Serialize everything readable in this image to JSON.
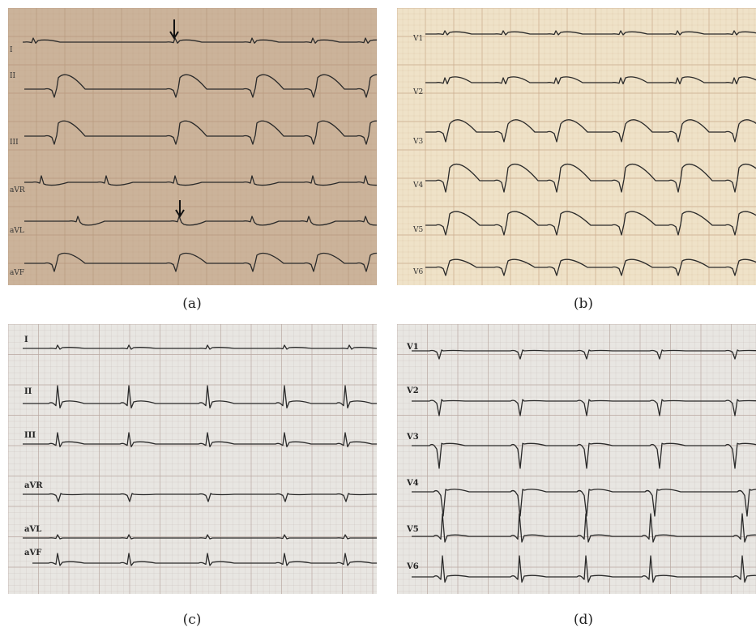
{
  "figure": {
    "panels": [
      {
        "id": "a",
        "caption": "(a)",
        "leads": [
          "I",
          "II",
          "III",
          "aVR",
          "aVL",
          "aVF"
        ],
        "arrows": 2
      },
      {
        "id": "b",
        "caption": "(b)",
        "leads": [
          "V1",
          "V2",
          "V3",
          "V4",
          "V5",
          "V6"
        ]
      },
      {
        "id": "c",
        "caption": "(c)",
        "leads": [
          "I",
          "II",
          "III",
          "aVR",
          "aVL",
          "aVF"
        ]
      },
      {
        "id": "d",
        "caption": "(d)",
        "leads": [
          "V1",
          "V2",
          "V3",
          "V4",
          "V5",
          "V6"
        ]
      }
    ]
  },
  "colors": {
    "paper_a": "#cbb39a",
    "paper_b": "#efe2c8",
    "paper_cd": "#e8e6e2",
    "grid_a": "#b7987d",
    "grid_b": "#c9a98a",
    "grid_cd": "#b8a7a0",
    "trace": "#2a2a2a"
  }
}
